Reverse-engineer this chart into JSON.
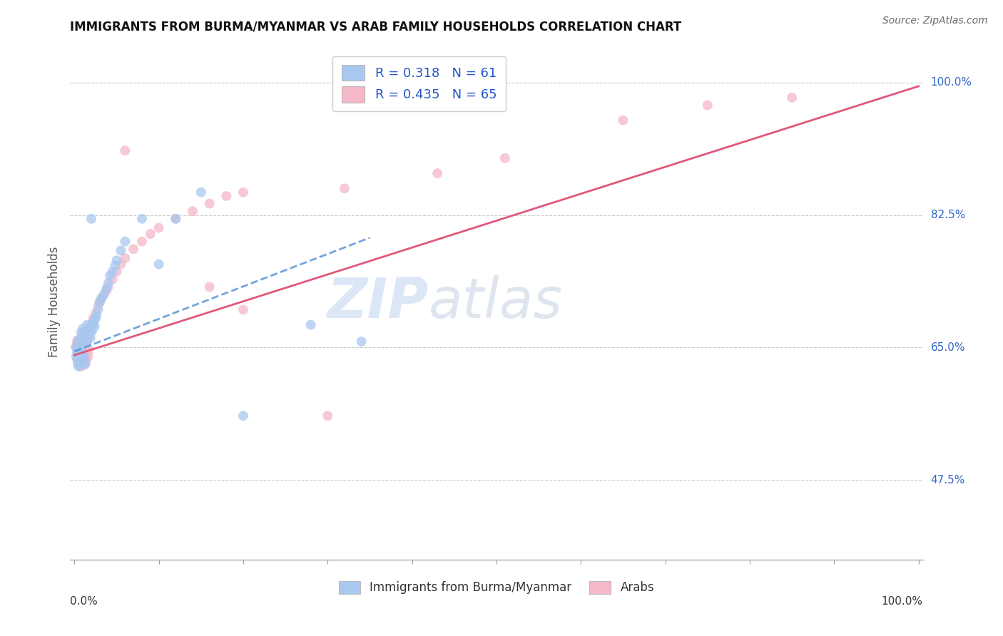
{
  "title": "IMMIGRANTS FROM BURMA/MYANMAR VS ARAB FAMILY HOUSEHOLDS CORRELATION CHART",
  "source": "Source: ZipAtlas.com",
  "ylabel": "Family Households",
  "ytick_vals": [
    0.475,
    0.65,
    0.825,
    1.0
  ],
  "ytick_labels": [
    "47.5%",
    "65.0%",
    "82.5%",
    "100.0%"
  ],
  "xlim": [
    -0.005,
    1.005
  ],
  "ylim": [
    0.37,
    1.05
  ],
  "legend_r_n": [
    "R = 0.318   N = 61",
    "R = 0.435   N = 65"
  ],
  "legend_bottom": [
    "Immigrants from Burma/Myanmar",
    "Arabs"
  ],
  "blue_color": "#a8c8f0",
  "pink_color": "#f5b8c8",
  "trend_blue_color": "#5090d0",
  "trend_pink_color": "#e05878",
  "blue_scatter_x": [
    0.002,
    0.003,
    0.004,
    0.005,
    0.005,
    0.006,
    0.007,
    0.008,
    0.008,
    0.009,
    0.01,
    0.01,
    0.011,
    0.012,
    0.013,
    0.014,
    0.015,
    0.015,
    0.016,
    0.017,
    0.018,
    0.019,
    0.02,
    0.021,
    0.022,
    0.023,
    0.024,
    0.025,
    0.026,
    0.028,
    0.03,
    0.032,
    0.035,
    0.038,
    0.04,
    0.042,
    0.045,
    0.048,
    0.05,
    0.055,
    0.002,
    0.003,
    0.004,
    0.005,
    0.006,
    0.007,
    0.008,
    0.009,
    0.01,
    0.011,
    0.012,
    0.013,
    0.06,
    0.08,
    0.1,
    0.12,
    0.15,
    0.2,
    0.28,
    0.34,
    0.02
  ],
  "blue_scatter_y": [
    0.65,
    0.648,
    0.652,
    0.643,
    0.66,
    0.655,
    0.645,
    0.658,
    0.67,
    0.662,
    0.668,
    0.675,
    0.66,
    0.655,
    0.665,
    0.672,
    0.68,
    0.658,
    0.665,
    0.67,
    0.675,
    0.663,
    0.678,
    0.672,
    0.68,
    0.685,
    0.678,
    0.688,
    0.692,
    0.7,
    0.71,
    0.715,
    0.72,
    0.728,
    0.735,
    0.745,
    0.75,
    0.758,
    0.765,
    0.778,
    0.638,
    0.642,
    0.63,
    0.625,
    0.635,
    0.64,
    0.628,
    0.632,
    0.636,
    0.641,
    0.633,
    0.628,
    0.79,
    0.82,
    0.76,
    0.82,
    0.855,
    0.56,
    0.68,
    0.658,
    0.82
  ],
  "pink_scatter_x": [
    0.002,
    0.003,
    0.004,
    0.005,
    0.006,
    0.007,
    0.008,
    0.009,
    0.01,
    0.011,
    0.012,
    0.013,
    0.014,
    0.015,
    0.016,
    0.017,
    0.018,
    0.019,
    0.02,
    0.022,
    0.025,
    0.028,
    0.03,
    0.032,
    0.035,
    0.038,
    0.04,
    0.045,
    0.05,
    0.055,
    0.06,
    0.07,
    0.08,
    0.09,
    0.1,
    0.12,
    0.14,
    0.16,
    0.18,
    0.2,
    0.003,
    0.004,
    0.005,
    0.006,
    0.007,
    0.008,
    0.009,
    0.01,
    0.011,
    0.012,
    0.013,
    0.014,
    0.015,
    0.016,
    0.017,
    0.16,
    0.32,
    0.43,
    0.51,
    0.65,
    0.75,
    0.85,
    0.2,
    0.3,
    0.06
  ],
  "pink_scatter_y": [
    0.652,
    0.658,
    0.66,
    0.648,
    0.655,
    0.662,
    0.65,
    0.645,
    0.668,
    0.66,
    0.655,
    0.665,
    0.67,
    0.658,
    0.672,
    0.665,
    0.678,
    0.67,
    0.68,
    0.688,
    0.695,
    0.705,
    0.71,
    0.715,
    0.72,
    0.725,
    0.73,
    0.74,
    0.75,
    0.76,
    0.768,
    0.78,
    0.79,
    0.8,
    0.808,
    0.82,
    0.83,
    0.84,
    0.85,
    0.855,
    0.635,
    0.628,
    0.638,
    0.632,
    0.642,
    0.625,
    0.63,
    0.645,
    0.635,
    0.628,
    0.64,
    0.633,
    0.65,
    0.638,
    0.645,
    0.73,
    0.86,
    0.88,
    0.9,
    0.95,
    0.97,
    0.98,
    0.7,
    0.56,
    0.91
  ],
  "blue_trend_x": [
    0.0,
    0.35
  ],
  "blue_trend_y": [
    0.645,
    0.795
  ],
  "pink_trend_x": [
    0.0,
    1.0
  ],
  "pink_trend_y": [
    0.64,
    0.995
  ]
}
